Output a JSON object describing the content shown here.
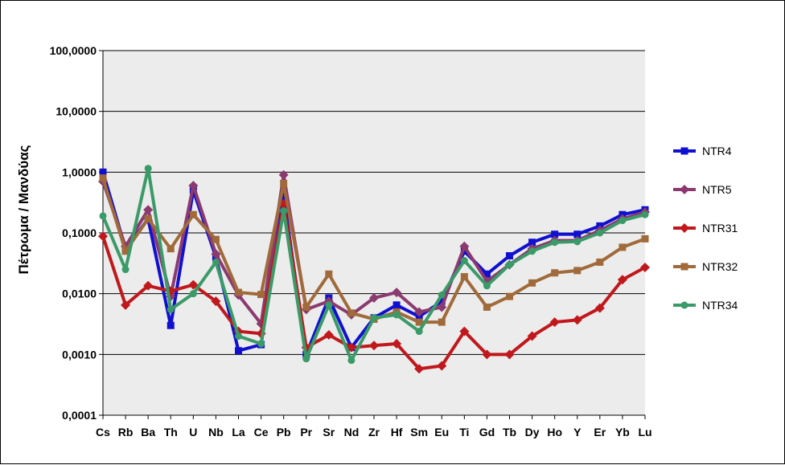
{
  "chart_data": {
    "type": "line",
    "title": "",
    "xlabel": "",
    "ylabel": "Πέτρωμα / Μανδύας",
    "yscale": "log",
    "ylim": [
      0.0001,
      100
    ],
    "yticks": [
      {
        "value": 100,
        "label": "100,0000"
      },
      {
        "value": 10,
        "label": "10,0000"
      },
      {
        "value": 1,
        "label": "1,0000"
      },
      {
        "value": 0.1,
        "label": "0,1000"
      },
      {
        "value": 0.01,
        "label": "0,0100"
      },
      {
        "value": 0.001,
        "label": "0,0010"
      },
      {
        "value": 0.0001,
        "label": "0,0001"
      }
    ],
    "grid": true,
    "legend_position": "right",
    "categories": [
      "Cs",
      "Rb",
      "Ba",
      "Th",
      "U",
      "Nb",
      "La",
      "Ce",
      "Pb",
      "Pr",
      "Sr",
      "Nd",
      "Zr",
      "Hf",
      "Sm",
      "Eu",
      "Ti",
      "Gd",
      "Tb",
      "Dy",
      "Ho",
      "Y",
      "Er",
      "Yb",
      "Lu"
    ],
    "series": [
      {
        "name": "NTR4",
        "color": "#1010d0",
        "marker": "square",
        "values": [
          1.0,
          0.055,
          0.17,
          0.003,
          0.5,
          0.04,
          0.00115,
          0.00145,
          0.4,
          0.001,
          0.0085,
          0.0013,
          0.004,
          0.0065,
          0.0042,
          0.0075,
          0.05,
          0.021,
          0.042,
          0.07,
          0.095,
          0.095,
          0.13,
          0.2,
          0.24
        ]
      },
      {
        "name": "NTR5",
        "color": "#8b3a70",
        "marker": "diamond",
        "values": [
          0.7,
          0.06,
          0.24,
          0.009,
          0.6,
          0.045,
          0.0095,
          0.0032,
          0.9,
          0.0055,
          0.0075,
          0.0045,
          0.0085,
          0.0105,
          0.005,
          0.006,
          0.06,
          0.016,
          0.03,
          0.055,
          0.075,
          0.075,
          0.11,
          0.17,
          0.22
        ]
      },
      {
        "name": "NTR31",
        "color": "#c0181c",
        "marker": "diamond",
        "values": [
          0.088,
          0.0065,
          0.0135,
          0.011,
          0.014,
          0.0075,
          0.0024,
          0.0022,
          0.3,
          0.0013,
          0.0021,
          0.0013,
          0.0014,
          0.0015,
          0.00058,
          0.00065,
          0.0024,
          0.001,
          0.001,
          0.002,
          0.0034,
          0.0037,
          0.0058,
          0.017,
          0.027
        ]
      },
      {
        "name": "NTR32",
        "color": "#a06a3a",
        "marker": "square",
        "values": [
          0.8,
          0.05,
          0.17,
          0.055,
          0.2,
          0.078,
          0.0105,
          0.0097,
          0.65,
          0.006,
          0.021,
          0.0048,
          0.0038,
          0.005,
          0.0034,
          0.0034,
          0.019,
          0.006,
          0.009,
          0.015,
          0.022,
          0.024,
          0.033,
          0.058,
          0.08
        ]
      },
      {
        "name": "NTR34",
        "color": "#3a9a68",
        "marker": "circle",
        "values": [
          0.19,
          0.025,
          1.15,
          0.0055,
          0.01,
          0.033,
          0.002,
          0.0015,
          0.23,
          0.00085,
          0.0065,
          0.0008,
          0.004,
          0.0045,
          0.0024,
          0.0095,
          0.035,
          0.0135,
          0.03,
          0.05,
          0.07,
          0.072,
          0.1,
          0.16,
          0.2
        ]
      }
    ]
  }
}
